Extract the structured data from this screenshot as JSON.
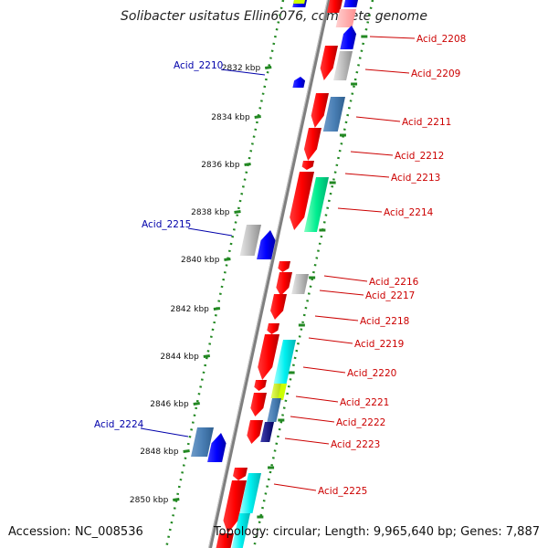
{
  "title": "Solibacter usitatus Ellin6076, complete genome",
  "footer": {
    "accession": "Accession: NC_008536",
    "topology": "Topology: circular; Length: 9,965,640 bp; Genes: 7,887"
  },
  "colors": {
    "forward_label": "#cc0000",
    "reverse_label": "#0000aa",
    "tick": "#228822",
    "backbone": "#888888"
  },
  "ticks": [
    "2832 kbp",
    "2834 kbp",
    "2836 kbp",
    "2838 kbp",
    "2840 kbp",
    "2842 kbp",
    "2844 kbp",
    "2846 kbp",
    "2848 kbp",
    "2850 kbp"
  ],
  "forward_labels": [
    "Acid_2208",
    "Acid_2209",
    "Acid_2211",
    "Acid_2212",
    "Acid_2213",
    "Acid_2214",
    "Acid_2216",
    "Acid_2217",
    "Acid_2218",
    "Acid_2219",
    "Acid_2220",
    "Acid_2221",
    "Acid_2222",
    "Acid_2223",
    "Acid_2225"
  ],
  "reverse_labels": [
    "Acid_2210",
    "Acid_2215",
    "Acid_2224"
  ]
}
